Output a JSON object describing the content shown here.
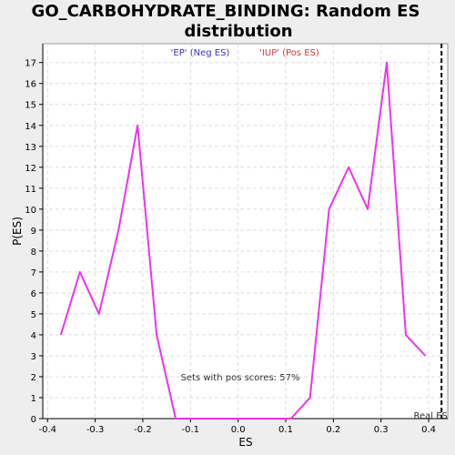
{
  "chart_data": {
    "type": "line",
    "title_lines": [
      "GO_CARBOHYDRATE_BINDING: Random ES",
      "distribution"
    ],
    "xlabel": "ES",
    "ylabel": "P(ES)",
    "xlim": [
      -0.41,
      0.44
    ],
    "ylim": [
      0,
      17.9
    ],
    "x_ticks": [
      -0.4,
      -0.3,
      -0.2,
      -0.1,
      0.0,
      0.1,
      0.2,
      0.3,
      0.4
    ],
    "x_tick_labels": [
      "-0.4",
      "-0.3",
      "-0.2",
      "-0.1",
      "0.0",
      "0.1",
      "0.2",
      "0.3",
      "0.4"
    ],
    "y_ticks": [
      0,
      1,
      2,
      3,
      4,
      5,
      6,
      7,
      8,
      9,
      10,
      11,
      12,
      13,
      14,
      15,
      16,
      17
    ],
    "y_tick_labels": [
      "0",
      "1",
      "2",
      "3",
      "4",
      "5",
      "6",
      "7",
      "8",
      "9",
      "10",
      "11",
      "12",
      "13",
      "14",
      "15",
      "16",
      "17"
    ],
    "grid": true,
    "series": [
      {
        "name": "Random ES",
        "color": "#ee33ee",
        "x": [
          -0.372,
          -0.332,
          -0.292,
          -0.251,
          -0.211,
          -0.171,
          -0.131,
          -0.091,
          -0.051,
          -0.01,
          0.03,
          0.07,
          0.111,
          0.151,
          0.191,
          0.232,
          0.272,
          0.312,
          0.352,
          0.393
        ],
        "y": [
          4,
          7,
          5,
          9,
          14,
          4,
          0,
          0,
          0,
          0,
          0,
          0,
          0,
          1,
          10,
          12,
          10,
          17,
          4,
          3
        ]
      }
    ],
    "legend": [
      {
        "label": "'EP' (Neg ES)",
        "color": "#3333cc"
      },
      {
        "label": "'IUP' (Pos ES)",
        "color": "#dd3333"
      }
    ],
    "legend_placement": "top-center",
    "annotation": "Sets with pos scores: 57%",
    "real_es": {
      "x": 0.427,
      "label": "Real ES"
    }
  }
}
